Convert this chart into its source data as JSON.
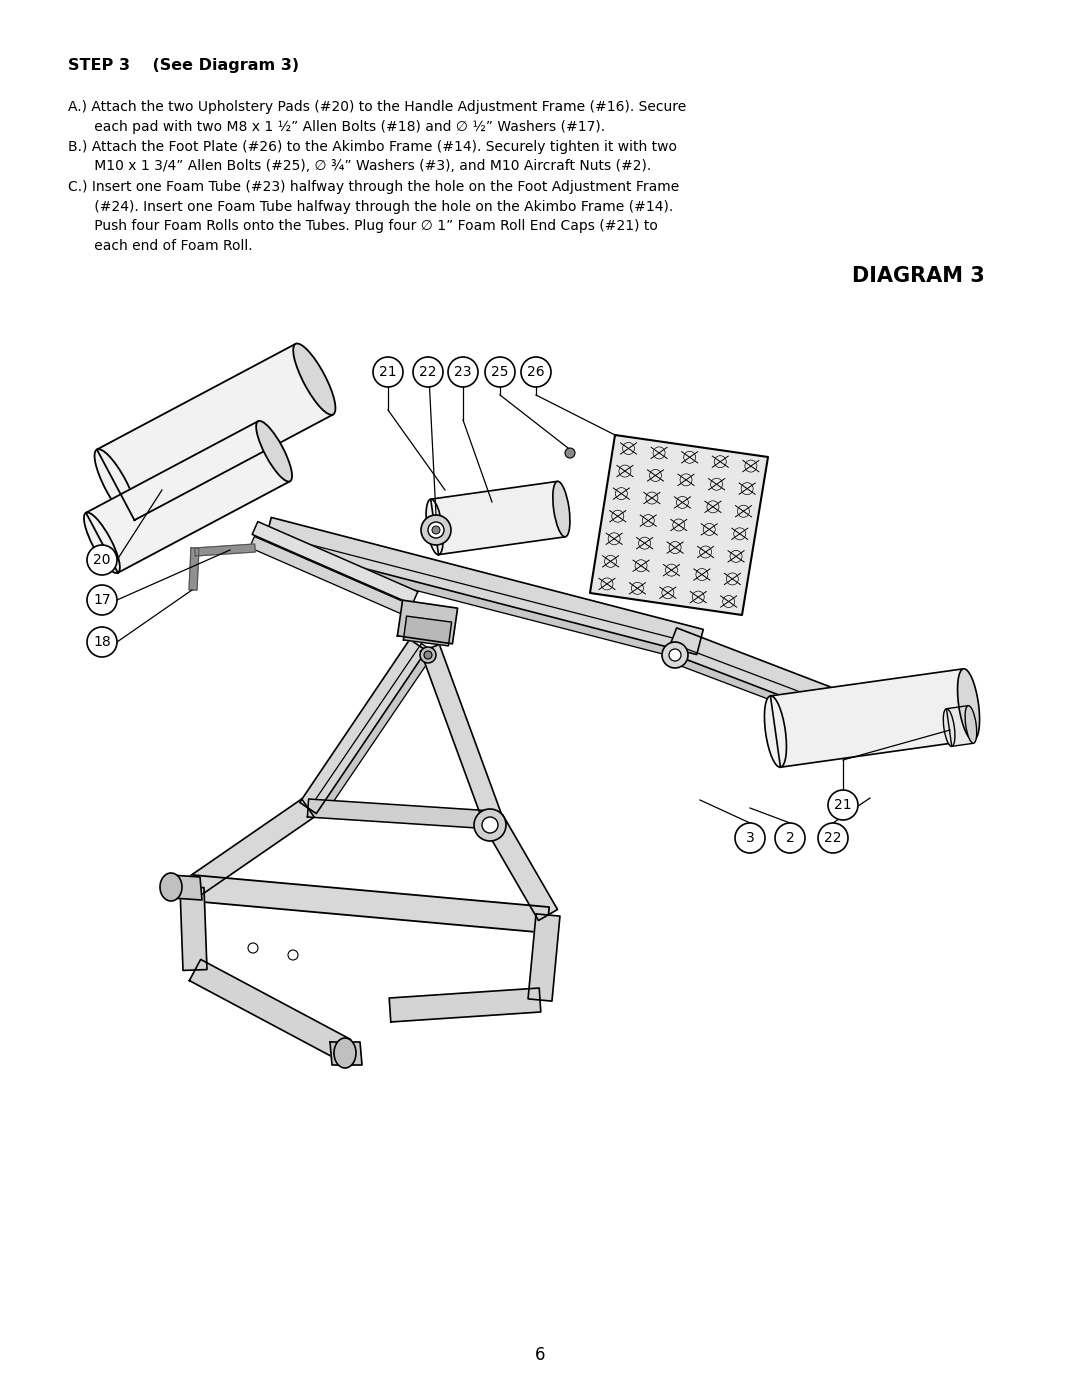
{
  "background_color": "#ffffff",
  "page_number": "6",
  "step_header": "STEP 3    (See Diagram 3)",
  "diagram_title": "DIAGRAM 3",
  "text_line_A1": "A.) Attach the two Upholstery Pads (#20) to the Handle Adjustment Frame (#16). Secure",
  "text_line_A2": "      each pad with two M8 x 1 ½” Allen Bolts (#18) and ∅ ½” Washers (#17).",
  "text_line_B1": "B.) Attach the Foot Plate (#26) to the Akimbo Frame (#14). Securely tighten it with two",
  "text_line_B2": "      M10 x 1 3/4” Allen Bolts (#25), ∅ ¾” Washers (#3), and M10 Aircraft Nuts (#2).",
  "text_line_C1": "C.) Insert one Foam Tube (#23) halfway through the hole on the Foot Adjustment Frame",
  "text_line_C2": "      (#24). Insert one Foam Tube halfway through the hole on the Akimbo Frame (#14).",
  "text_line_C3": "      Push four Foam Rolls onto the Tubes. Plug four ∅ 1” Foam Roll End Caps (#21) to",
  "text_line_C4": "      each end of Foam Roll.",
  "fig_width": 10.8,
  "fig_height": 13.97,
  "dpi": 100
}
